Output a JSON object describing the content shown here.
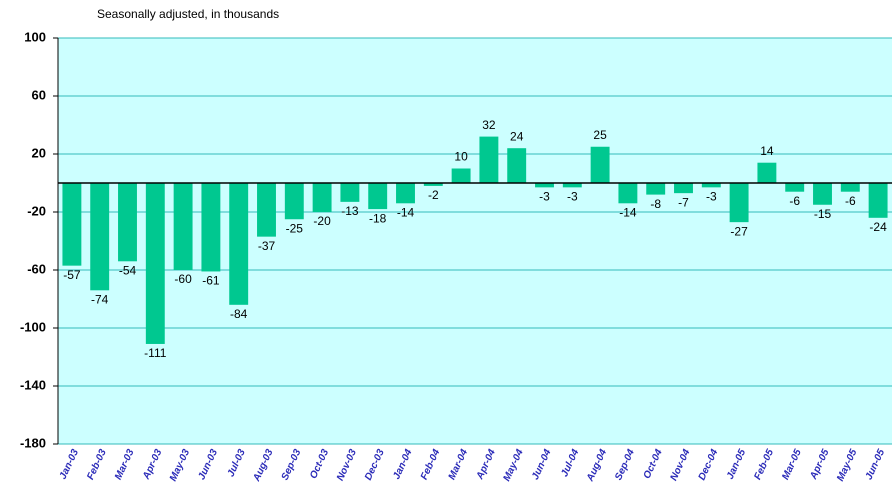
{
  "chart_data": {
    "type": "bar",
    "subtitle": "Seasonally adjusted, in thousands",
    "categories": [
      "Jan-03",
      "Feb-03",
      "Mar-03",
      "Apr-03",
      "May-03",
      "Jun-03",
      "Jul-03",
      "Aug-03",
      "Sep-03",
      "Oct-03",
      "Nov-03",
      "Dec-03",
      "Jan-04",
      "Feb-04",
      "Mar-04",
      "Apr-04",
      "May-04",
      "Jun-04",
      "Jul-04",
      "Aug-04",
      "Sep-04",
      "Oct-04",
      "Nov-04",
      "Dec-04",
      "Jan-05",
      "Feb-05",
      "Mar-05",
      "Apr-05",
      "May-05",
      "Jun-05"
    ],
    "values": [
      -57,
      -74,
      -54,
      -111,
      -60,
      -61,
      -84,
      -37,
      -25,
      -20,
      -13,
      -18,
      -14,
      -2,
      10,
      32,
      24,
      -3,
      -3,
      25,
      -14,
      -8,
      -7,
      -3,
      -27,
      14,
      -6,
      -15,
      -6,
      -24
    ],
    "color": "#00c890",
    "ylim": [
      -180,
      100
    ],
    "yticks": [
      100,
      60,
      20,
      -20,
      -60,
      -100,
      -140,
      -180
    ],
    "grid": true
  }
}
